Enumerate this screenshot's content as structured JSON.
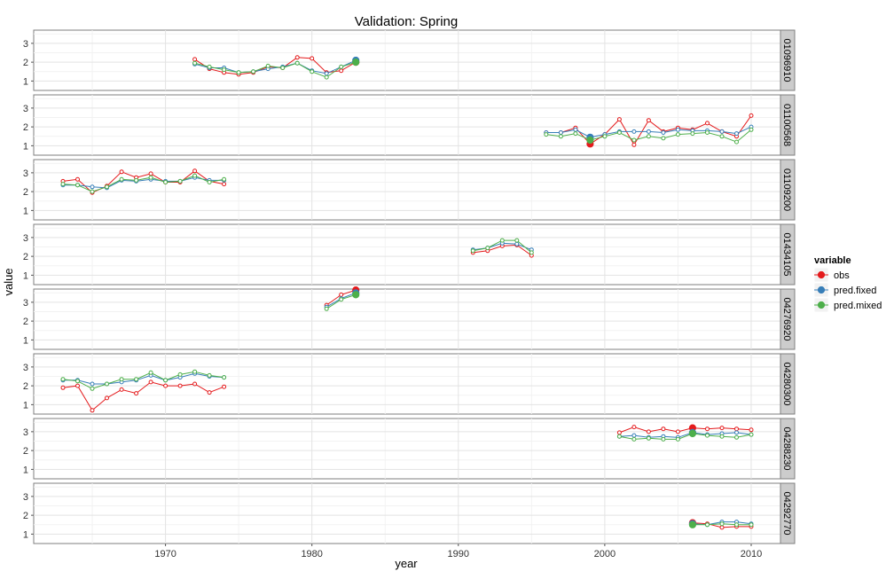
{
  "chart_data": {
    "type": "line",
    "title": "Validation: Spring",
    "xlabel": "year",
    "ylabel": "value",
    "xlim": [
      1961,
      2012
    ],
    "ylim": [
      0.5,
      3.7
    ],
    "x_ticks": [
      1970,
      1980,
      1990,
      2000,
      2010
    ],
    "y_ticks": [
      1,
      2,
      3
    ],
    "grid": true,
    "legend": {
      "title": "variable",
      "placement": "right",
      "items": [
        {
          "name": "obs",
          "color": "#e41a1c"
        },
        {
          "name": "pred.fixed",
          "color": "#377eb8"
        },
        {
          "name": "pred.mixed",
          "color": "#4daf4a"
        }
      ]
    },
    "panels": [
      {
        "label": "01096910",
        "obs": [
          [
            1972,
            2.15
          ],
          [
            1973,
            1.65
          ],
          [
            1974,
            1.45
          ],
          [
            1975,
            1.35
          ],
          [
            1976,
            1.45
          ],
          [
            1977,
            1.75
          ],
          [
            1978,
            1.7
          ],
          [
            1979,
            2.25
          ],
          [
            1980,
            2.2
          ],
          [
            1981,
            1.45
          ],
          [
            1982,
            1.55
          ],
          [
            1983,
            2.0
          ]
        ],
        "pred_fixed": [
          [
            1972,
            1.9
          ],
          [
            1973,
            1.7
          ],
          [
            1974,
            1.7
          ],
          [
            1975,
            1.45
          ],
          [
            1976,
            1.5
          ],
          [
            1977,
            1.65
          ],
          [
            1978,
            1.75
          ],
          [
            1979,
            1.95
          ],
          [
            1980,
            1.55
          ],
          [
            1981,
            1.4
          ],
          [
            1982,
            1.75
          ],
          [
            1983,
            2.1
          ]
        ],
        "pred_mixed": [
          [
            1972,
            1.95
          ],
          [
            1973,
            1.75
          ],
          [
            1974,
            1.6
          ],
          [
            1975,
            1.45
          ],
          [
            1976,
            1.5
          ],
          [
            1977,
            1.8
          ],
          [
            1978,
            1.7
          ],
          [
            1979,
            1.95
          ],
          [
            1980,
            1.5
          ],
          [
            1981,
            1.2
          ],
          [
            1982,
            1.75
          ],
          [
            1983,
            2.0
          ]
        ],
        "highlight": 1983
      },
      {
        "label": "01100568",
        "obs": [
          [
            1996,
            1.7
          ],
          [
            1997,
            1.7
          ],
          [
            1998,
            1.95
          ],
          [
            1999,
            1.1
          ],
          [
            2000,
            1.6
          ],
          [
            2001,
            2.4
          ],
          [
            2002,
            1.05
          ],
          [
            2003,
            2.35
          ],
          [
            2004,
            1.75
          ],
          [
            2005,
            1.95
          ],
          [
            2006,
            1.85
          ],
          [
            2007,
            2.2
          ],
          [
            2008,
            1.75
          ],
          [
            2009,
            1.5
          ],
          [
            2010,
            2.6
          ]
        ],
        "pred_fixed": [
          [
            1996,
            1.7
          ],
          [
            1997,
            1.7
          ],
          [
            1998,
            1.85
          ],
          [
            1999,
            1.45
          ],
          [
            2000,
            1.6
          ],
          [
            2001,
            1.75
          ],
          [
            2002,
            1.75
          ],
          [
            2003,
            1.75
          ],
          [
            2004,
            1.7
          ],
          [
            2005,
            1.85
          ],
          [
            2006,
            1.8
          ],
          [
            2007,
            1.8
          ],
          [
            2008,
            1.75
          ],
          [
            2009,
            1.65
          ],
          [
            2010,
            2.0
          ]
        ],
        "pred_mixed": [
          [
            1996,
            1.6
          ],
          [
            1997,
            1.5
          ],
          [
            1998,
            1.65
          ],
          [
            1999,
            1.3
          ],
          [
            2000,
            1.5
          ],
          [
            2001,
            1.7
          ],
          [
            2002,
            1.3
          ],
          [
            2003,
            1.5
          ],
          [
            2004,
            1.4
          ],
          [
            2005,
            1.6
          ],
          [
            2006,
            1.65
          ],
          [
            2007,
            1.7
          ],
          [
            2008,
            1.5
          ],
          [
            2009,
            1.2
          ],
          [
            2010,
            1.85
          ]
        ],
        "highlight": 1999
      },
      {
        "label": "01109200",
        "obs": [
          [
            1963,
            2.55
          ],
          [
            1964,
            2.65
          ],
          [
            1965,
            1.95
          ],
          [
            1966,
            2.3
          ],
          [
            1967,
            3.05
          ],
          [
            1968,
            2.75
          ],
          [
            1969,
            2.95
          ],
          [
            1970,
            2.5
          ],
          [
            1971,
            2.5
          ],
          [
            1972,
            3.1
          ],
          [
            1973,
            2.55
          ],
          [
            1974,
            2.4
          ]
        ],
        "pred_fixed": [
          [
            1963,
            2.35
          ],
          [
            1964,
            2.35
          ],
          [
            1965,
            2.25
          ],
          [
            1966,
            2.2
          ],
          [
            1967,
            2.6
          ],
          [
            1968,
            2.55
          ],
          [
            1969,
            2.65
          ],
          [
            1970,
            2.55
          ],
          [
            1971,
            2.55
          ],
          [
            1972,
            2.75
          ],
          [
            1973,
            2.6
          ],
          [
            1974,
            2.6
          ]
        ],
        "pred_mixed": [
          [
            1963,
            2.4
          ],
          [
            1964,
            2.35
          ],
          [
            1965,
            2.0
          ],
          [
            1966,
            2.25
          ],
          [
            1967,
            2.65
          ],
          [
            1968,
            2.6
          ],
          [
            1969,
            2.75
          ],
          [
            1970,
            2.5
          ],
          [
            1971,
            2.55
          ],
          [
            1972,
            2.85
          ],
          [
            1973,
            2.5
          ],
          [
            1974,
            2.65
          ]
        ],
        "highlight": null
      },
      {
        "label": "01434105",
        "obs": [
          [
            1991,
            2.2
          ],
          [
            1992,
            2.3
          ],
          [
            1993,
            2.55
          ],
          [
            1994,
            2.6
          ],
          [
            1995,
            2.05
          ]
        ],
        "pred_fixed": [
          [
            1991,
            2.35
          ],
          [
            1992,
            2.45
          ],
          [
            1993,
            2.7
          ],
          [
            1994,
            2.65
          ],
          [
            1995,
            2.35
          ]
        ],
        "pred_mixed": [
          [
            1991,
            2.3
          ],
          [
            1992,
            2.45
          ],
          [
            1993,
            2.85
          ],
          [
            1994,
            2.85
          ],
          [
            1995,
            2.2
          ]
        ],
        "highlight": null
      },
      {
        "label": "04276920",
        "obs": [
          [
            1981,
            2.85
          ],
          [
            1982,
            3.4
          ],
          [
            1983,
            3.65
          ]
        ],
        "pred_fixed": [
          [
            1981,
            2.75
          ],
          [
            1982,
            3.2
          ],
          [
            1983,
            3.5
          ]
        ],
        "pred_mixed": [
          [
            1981,
            2.65
          ],
          [
            1982,
            3.15
          ],
          [
            1983,
            3.4
          ]
        ],
        "highlight": 1983
      },
      {
        "label": "04280300",
        "obs": [
          [
            1963,
            1.9
          ],
          [
            1964,
            2.0
          ],
          [
            1965,
            0.7
          ],
          [
            1966,
            1.35
          ],
          [
            1967,
            1.8
          ],
          [
            1968,
            1.6
          ],
          [
            1969,
            2.2
          ],
          [
            1970,
            2.0
          ],
          [
            1971,
            2.0
          ],
          [
            1972,
            2.1
          ],
          [
            1973,
            1.65
          ],
          [
            1974,
            1.95
          ]
        ],
        "pred_fixed": [
          [
            1963,
            2.3
          ],
          [
            1964,
            2.3
          ],
          [
            1965,
            2.1
          ],
          [
            1966,
            2.1
          ],
          [
            1967,
            2.2
          ],
          [
            1968,
            2.3
          ],
          [
            1969,
            2.55
          ],
          [
            1970,
            2.3
          ],
          [
            1971,
            2.45
          ],
          [
            1972,
            2.65
          ],
          [
            1973,
            2.5
          ],
          [
            1974,
            2.45
          ]
        ],
        "pred_mixed": [
          [
            1963,
            2.35
          ],
          [
            1964,
            2.25
          ],
          [
            1965,
            1.85
          ],
          [
            1966,
            2.1
          ],
          [
            1967,
            2.35
          ],
          [
            1968,
            2.35
          ],
          [
            1969,
            2.7
          ],
          [
            1970,
            2.3
          ],
          [
            1971,
            2.6
          ],
          [
            1972,
            2.75
          ],
          [
            1973,
            2.55
          ],
          [
            1974,
            2.45
          ]
        ],
        "highlight": null
      },
      {
        "label": "04288230",
        "obs": [
          [
            2001,
            2.95
          ],
          [
            2002,
            3.25
          ],
          [
            2003,
            3.0
          ],
          [
            2004,
            3.15
          ],
          [
            2005,
            3.0
          ],
          [
            2006,
            3.2
          ],
          [
            2007,
            3.15
          ],
          [
            2008,
            3.2
          ],
          [
            2009,
            3.15
          ],
          [
            2010,
            3.1
          ]
        ],
        "pred_fixed": [
          [
            2001,
            2.75
          ],
          [
            2002,
            2.8
          ],
          [
            2003,
            2.7
          ],
          [
            2004,
            2.75
          ],
          [
            2005,
            2.7
          ],
          [
            2006,
            2.95
          ],
          [
            2007,
            2.85
          ],
          [
            2008,
            2.9
          ],
          [
            2009,
            2.95
          ],
          [
            2010,
            2.85
          ]
        ],
        "pred_mixed": [
          [
            2001,
            2.75
          ],
          [
            2002,
            2.6
          ],
          [
            2003,
            2.65
          ],
          [
            2004,
            2.6
          ],
          [
            2005,
            2.6
          ],
          [
            2006,
            2.9
          ],
          [
            2007,
            2.8
          ],
          [
            2008,
            2.75
          ],
          [
            2009,
            2.7
          ],
          [
            2010,
            2.85
          ]
        ],
        "highlight": 2006
      },
      {
        "label": "04292770",
        "obs": [
          [
            2006,
            1.6
          ],
          [
            2007,
            1.55
          ],
          [
            2008,
            1.35
          ],
          [
            2009,
            1.4
          ],
          [
            2010,
            1.4
          ]
        ],
        "pred_fixed": [
          [
            2006,
            1.55
          ],
          [
            2007,
            1.5
          ],
          [
            2008,
            1.65
          ],
          [
            2009,
            1.65
          ],
          [
            2010,
            1.55
          ]
        ],
        "pred_mixed": [
          [
            2006,
            1.5
          ],
          [
            2007,
            1.5
          ],
          [
            2008,
            1.55
          ],
          [
            2009,
            1.5
          ],
          [
            2010,
            1.5
          ]
        ],
        "highlight": 2006
      }
    ]
  }
}
